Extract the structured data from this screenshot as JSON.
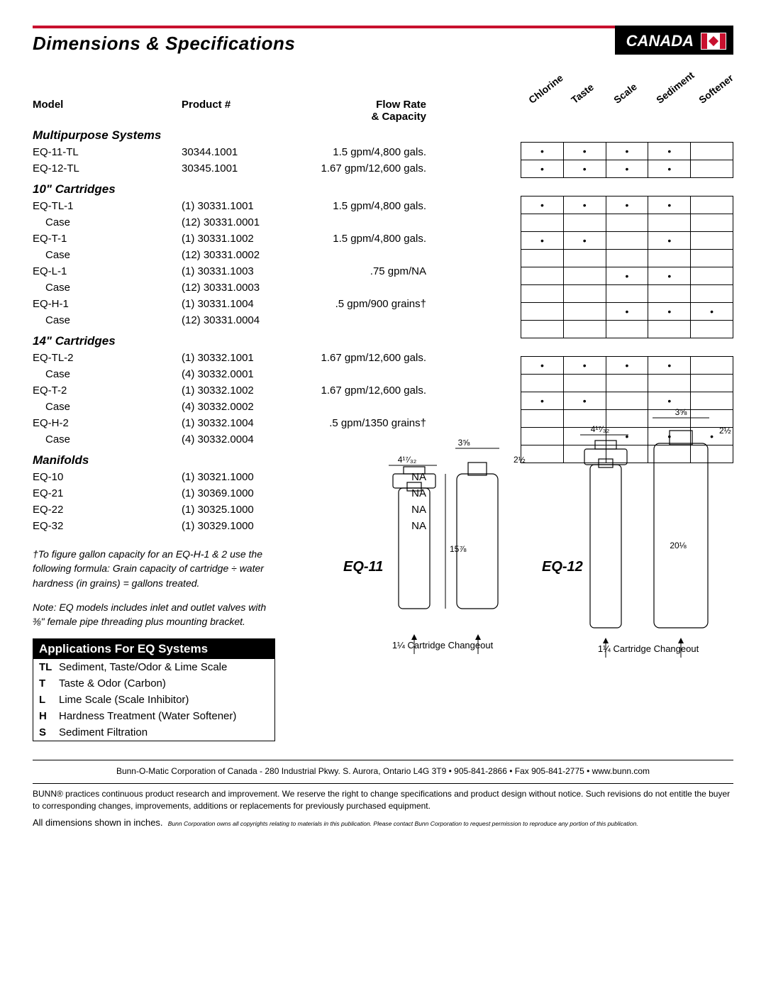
{
  "header": {
    "title": "Dimensions & Specifications",
    "country": "CANADA"
  },
  "columns": {
    "model": "Model",
    "product": "Product #",
    "flow": "Flow Rate & Capacity"
  },
  "matrix_labels": [
    "Chlorine",
    "Taste",
    "Scale",
    "Sediment",
    "Softener"
  ],
  "sections": [
    {
      "title": "Multipurpose Systems",
      "rows": [
        {
          "model": "EQ-11-TL",
          "product": "30344.1001",
          "flow": "1.5 gpm/4,800 gals.",
          "dots": [
            1,
            1,
            1,
            1,
            0
          ]
        },
        {
          "model": "EQ-12-TL",
          "product": "30345.1001",
          "flow": "1.67 gpm/12,600 gals.",
          "dots": [
            1,
            1,
            1,
            1,
            0
          ]
        }
      ]
    },
    {
      "title": "10\" Cartridges",
      "rows": [
        {
          "model": "EQ-TL-1",
          "product": "(1) 30331.1001",
          "flow": "1.5 gpm/4,800 gals.",
          "dots": [
            1,
            1,
            1,
            1,
            0
          ]
        },
        {
          "model": "Case",
          "indent": true,
          "product": "(12) 30331.0001",
          "flow": "",
          "dots": [
            0,
            0,
            0,
            0,
            0
          ]
        },
        {
          "model": "EQ-T-1",
          "product": "(1) 30331.1002",
          "flow": "1.5 gpm/4,800 gals.",
          "dots": [
            1,
            1,
            0,
            1,
            0
          ]
        },
        {
          "model": "Case",
          "indent": true,
          "product": "(12) 30331.0002",
          "flow": "",
          "dots": [
            0,
            0,
            0,
            0,
            0
          ]
        },
        {
          "model": "EQ-L-1",
          "product": "(1) 30331.1003",
          "flow": ".75 gpm/NA",
          "dots": [
            0,
            0,
            1,
            1,
            0
          ]
        },
        {
          "model": "Case",
          "indent": true,
          "product": "(12) 30331.0003",
          "flow": "",
          "dots": [
            0,
            0,
            0,
            0,
            0
          ]
        },
        {
          "model": "EQ-H-1",
          "product": "(1) 30331.1004",
          "flow": ".5 gpm/900 grains†",
          "dots": [
            0,
            0,
            1,
            1,
            1
          ]
        },
        {
          "model": "Case",
          "indent": true,
          "product": "(12) 30331.0004",
          "flow": "",
          "dots": [
            0,
            0,
            0,
            0,
            0
          ]
        }
      ]
    },
    {
      "title": "14\" Cartridges",
      "rows": [
        {
          "model": "EQ-TL-2",
          "product": "(1) 30332.1001",
          "flow": "1.67 gpm/12,600 gals.",
          "dots": [
            1,
            1,
            1,
            1,
            0
          ]
        },
        {
          "model": "Case",
          "indent": true,
          "product": "(4) 30332.0001",
          "flow": "",
          "dots": [
            0,
            0,
            0,
            0,
            0
          ]
        },
        {
          "model": "EQ-T-2",
          "product": "(1) 30332.1002",
          "flow": "1.67 gpm/12,600 gals.",
          "dots": [
            1,
            1,
            0,
            1,
            0
          ]
        },
        {
          "model": "Case",
          "indent": true,
          "product": "(4) 30332.0002",
          "flow": "",
          "dots": [
            0,
            0,
            0,
            0,
            0
          ]
        },
        {
          "model": "EQ-H-2",
          "product": "(1) 30332.1004",
          "flow": ".5 gpm/1350 grains†",
          "dots": [
            0,
            0,
            1,
            1,
            1
          ]
        },
        {
          "model": "Case",
          "indent": true,
          "product": "(4) 30332.0004",
          "flow": "",
          "dots": [
            0,
            0,
            0,
            0,
            0
          ]
        }
      ]
    },
    {
      "title": "Manifolds",
      "no_matrix": true,
      "rows": [
        {
          "model": "EQ-10",
          "product": "(1) 30321.1000",
          "flow": "NA"
        },
        {
          "model": "EQ-21",
          "product": "(1) 30369.1000",
          "flow": "NA"
        },
        {
          "model": "EQ-22",
          "product": "(1) 30325.1000",
          "flow": "NA"
        },
        {
          "model": "EQ-32",
          "product": "(1) 30329.1000",
          "flow": "NA"
        }
      ]
    }
  ],
  "footnote1": "†To figure gallon capacity for an EQ-H-1 & 2 use the following formula: Grain capacity of cartridge ÷ water hardness (in grains) = gallons treated.",
  "footnote2": "Note: EQ models includes inlet and outlet valves with ⅜\" female pipe threading plus mounting bracket.",
  "apps_title": "Applications For EQ Systems",
  "apps": [
    {
      "code": "TL",
      "text": "Sediment, Taste/Odor & Lime Scale"
    },
    {
      "code": "T",
      "text": "Taste & Odor (Carbon)"
    },
    {
      "code": "L",
      "text": "Lime Scale (Scale Inhibitor)"
    },
    {
      "code": "H",
      "text": "Hardness Treatment (Water Softener)"
    },
    {
      "code": "S",
      "text": "Sediment Filtration"
    }
  ],
  "diagrams": {
    "eq11": {
      "label": "EQ-11",
      "bracket_w": "4¹⁷⁄₃₂",
      "cap_w": "3⅝",
      "cap_h": "2½",
      "height": "15⅞",
      "changeout": "1¼ Cartridge Changeout"
    },
    "eq12": {
      "label": "EQ-12",
      "bracket_w": "4¹⁷⁄₃₂",
      "cap_w": "3⅝",
      "cap_h": "2½",
      "height": "20⅛",
      "changeout": "1¼ Cartridge Changeout"
    }
  },
  "footer_contact": "Bunn-O-Matic Corporation of Canada - 280 Industrial Pkwy. S. Aurora, Ontario  L4G 3T9 • 905-841-2866 • Fax 905-841-2775 • www.bunn.com",
  "footer_disclaimer": "BUNN® practices continuous product research and improvement. We reserve the right to change specifications and product design without notice. Such revisions do not entitle the buyer to corresponding changes, improvements, additions or replacements for previously purchased equipment.",
  "footer_dims": "All dimensions shown in inches.",
  "footer_tiny": "Bunn Corporation owns all copyrights relating to materials in this publication.  Please contact Bunn Corporation to request permission to reproduce any portion of this publication.",
  "colors": {
    "brand_red": "#c8102e",
    "rule": "#000000"
  }
}
